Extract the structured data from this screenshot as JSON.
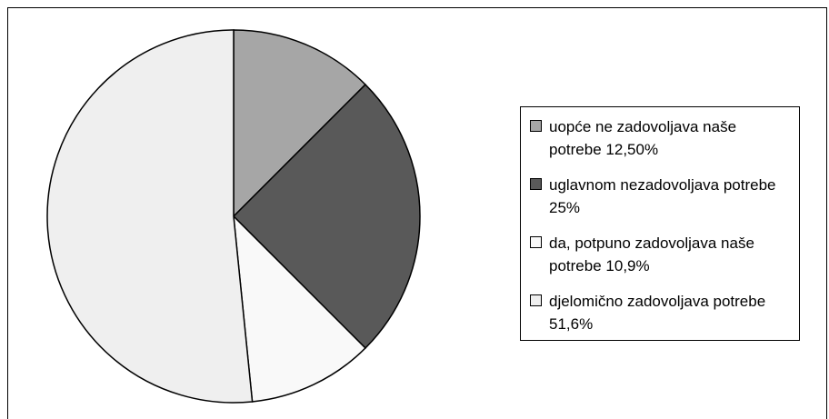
{
  "chart_data": {
    "type": "pie",
    "categories": [
      "uopće ne zadovoljava naše potrebe",
      "uglavnom nezadovoljava potrebe",
      "da, potpuno zadovoljava naše potrebe",
      "djelomično zadovoljava potrebe"
    ],
    "values": [
      12.5,
      25,
      10.9,
      51.6
    ],
    "value_labels": [
      "12,50%",
      "25%",
      "10,9%",
      "51,6%"
    ],
    "colors": [
      "#a6a6a6",
      "#595959",
      "#f9f9f9",
      "#efefef"
    ],
    "legend": "right"
  }
}
